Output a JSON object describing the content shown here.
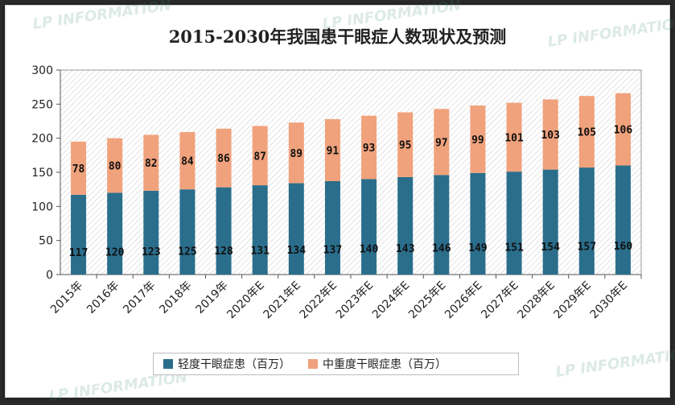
{
  "watermark": "LP INFORMATION",
  "chart_data": {
    "type": "bar",
    "stacked": true,
    "title": "2015-2030年我国患干眼症人数现状及预测",
    "xlabel": "",
    "ylabel": "",
    "ylim": [
      0,
      300
    ],
    "yticks": [
      0,
      50,
      100,
      150,
      200,
      250,
      300
    ],
    "grid": false,
    "legend": "bottom",
    "categories": [
      "2015年",
      "2016年",
      "2017年",
      "2018年",
      "2019年",
      "2020年E",
      "2021年E",
      "2022年E",
      "2023年E",
      "2024年E",
      "2025年E",
      "2026年E",
      "2027年E",
      "2028年E",
      "2029年E",
      "2030年E"
    ],
    "series": [
      {
        "name": "轻度干眼症患（百万）",
        "color": "#2a6e8c",
        "values": [
          117,
          120,
          123,
          125,
          128,
          131,
          134,
          137,
          140,
          143,
          146,
          149,
          151,
          154,
          157,
          160
        ]
      },
      {
        "name": "中重度干眼症患（百万）",
        "color": "#f0a27c",
        "values": [
          78,
          80,
          82,
          84,
          86,
          87,
          89,
          91,
          93,
          95,
          97,
          99,
          101,
          103,
          105,
          106
        ]
      }
    ]
  }
}
